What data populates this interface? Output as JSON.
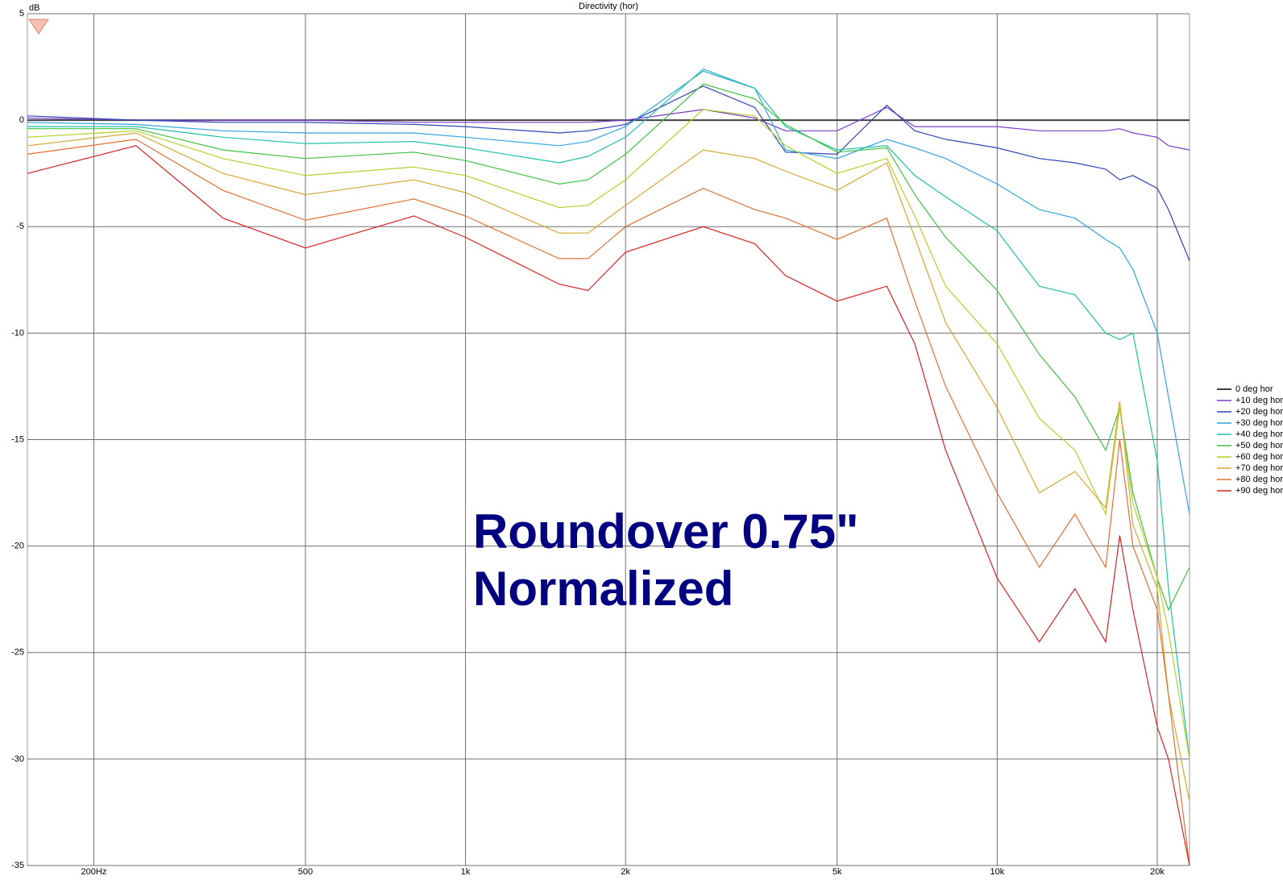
{
  "chart_data": {
    "type": "line",
    "title": "Directivity (hor)",
    "y_label": "dB",
    "annotations": [
      "Roundover 0.75\"",
      "Normalized"
    ],
    "x_scale": "log",
    "grid": true,
    "legend": "right",
    "xlim": [
      150,
      23000
    ],
    "ylim": [
      -35,
      5
    ],
    "xticks": [
      {
        "value": 200,
        "label": "200Hz"
      },
      500,
      {
        "value": 1000,
        "label": "1k"
      },
      {
        "value": 2000,
        "label": "2k"
      },
      {
        "value": 5000,
        "label": "5k"
      },
      {
        "value": 10000,
        "label": "10k"
      },
      {
        "value": 20000,
        "label": "20k"
      }
    ],
    "yticks": [
      -35,
      -30,
      -25,
      -20,
      -15,
      -10,
      -5,
      0,
      5
    ],
    "x": [
      150,
      240,
      350,
      500,
      800,
      1000,
      1500,
      1700,
      2000,
      2800,
      3500,
      4000,
      5000,
      6200,
      7000,
      8000,
      10000,
      12000,
      14000,
      16000,
      17000,
      18000,
      20000,
      21000,
      23000
    ],
    "series": [
      {
        "name": "0 deg hor",
        "color": "#404040",
        "values": [
          0,
          0,
          0,
          0,
          0,
          0,
          0,
          0,
          0,
          0,
          0,
          0,
          0,
          0,
          0,
          0,
          0,
          0,
          0,
          0,
          0,
          0,
          0,
          0,
          0
        ]
      },
      {
        "name": "+10 deg hor",
        "color": "#7a3cc8",
        "values": [
          0.1,
          0,
          0,
          0,
          -0.1,
          -0.1,
          -0.1,
          -0.1,
          0,
          0.5,
          0.1,
          -0.5,
          -0.5,
          0.6,
          -0.3,
          -0.3,
          -0.3,
          -0.5,
          -0.5,
          -0.5,
          -0.4,
          -0.6,
          -0.8,
          -1.2,
          -1.4
        ]
      },
      {
        "name": "+20 deg hor",
        "color": "#3044b4",
        "values": [
          0.2,
          0,
          -0.1,
          -0.1,
          -0.2,
          -0.3,
          -0.6,
          -0.5,
          -0.2,
          1.6,
          0.6,
          -1.5,
          -1.6,
          0.7,
          -0.5,
          -0.9,
          -1.3,
          -1.8,
          -2.0,
          -2.3,
          -2.8,
          -2.6,
          -3.2,
          -4.2,
          -6.6
        ]
      },
      {
        "name": "+30 deg hor",
        "color": "#30a4e0",
        "values": [
          -0.1,
          -0.2,
          -0.5,
          -0.6,
          -0.6,
          -0.8,
          -1.2,
          -1.0,
          -0.3,
          2.3,
          1.5,
          -1.4,
          -1.8,
          -0.9,
          -1.3,
          -1.8,
          -3.0,
          -4.2,
          -4.6,
          -5.6,
          -6.0,
          -7.0,
          -10.0,
          -13,
          -18.5
        ]
      },
      {
        "name": "+40 deg hor",
        "color": "#20c0a8",
        "values": [
          -0.3,
          -0.3,
          -0.8,
          -1.1,
          -1.0,
          -1.3,
          -2.0,
          -1.7,
          -0.8,
          2.4,
          1.5,
          -0.3,
          -1.4,
          -1.2,
          -2.6,
          -3.6,
          -5.2,
          -7.8,
          -8.2,
          -10.0,
          -10.3,
          -10.0,
          -16,
          -22,
          -30
        ]
      },
      {
        "name": "+50 deg hor",
        "color": "#40c040",
        "values": [
          -0.4,
          -0.4,
          -1.4,
          -1.8,
          -1.5,
          -1.9,
          -3.0,
          -2.8,
          -1.6,
          1.7,
          1.0,
          -0.2,
          -1.5,
          -1.3,
          -3.5,
          -5.5,
          -8.0,
          -11.0,
          -13.0,
          -15.5,
          -13.5,
          -17.5,
          -21.5,
          -23,
          -21
        ]
      },
      {
        "name": "+60 deg hor",
        "color": "#b4d028",
        "values": [
          -0.8,
          -0.5,
          -1.8,
          -2.6,
          -2.2,
          -2.6,
          -4.1,
          -4.0,
          -2.8,
          0.5,
          0.2,
          -1.2,
          -2.5,
          -1.8,
          -4.5,
          -7.8,
          -10.5,
          -14.0,
          -15.5,
          -18.5,
          -13.5,
          -18,
          -21.5,
          -24,
          -30
        ]
      },
      {
        "name": "+70 deg hor",
        "color": "#d4a834",
        "values": [
          -1.2,
          -0.6,
          -2.5,
          -3.5,
          -2.8,
          -3.4,
          -5.3,
          -5.3,
          -4.0,
          -1.4,
          -1.8,
          -2.4,
          -3.3,
          -2.0,
          -5.5,
          -9.5,
          -13.5,
          -17.5,
          -16.5,
          -18.2,
          -13.2,
          -19,
          -22,
          -27,
          -32
        ]
      },
      {
        "name": "+80 deg hor",
        "color": "#e07034",
        "values": [
          -1.6,
          -0.9,
          -3.3,
          -4.7,
          -3.7,
          -4.5,
          -6.5,
          -6.5,
          -5.0,
          -3.2,
          -4.2,
          -4.6,
          -5.6,
          -4.6,
          -8.5,
          -12.5,
          -17.5,
          -21,
          -18.5,
          -21,
          -15,
          -20,
          -23,
          -27,
          -35
        ]
      },
      {
        "name": "+90 deg hor",
        "color": "#d42424",
        "values": [
          -2.5,
          -1.2,
          -4.6,
          -6.0,
          -4.5,
          -5.5,
          -7.7,
          -8.0,
          -6.2,
          -5.0,
          -5.8,
          -7.3,
          -8.5,
          -7.8,
          -10.5,
          -15.5,
          -21.5,
          -24.5,
          -22,
          -24.5,
          -19.5,
          -23,
          -28.5,
          -30,
          -35
        ]
      }
    ]
  }
}
